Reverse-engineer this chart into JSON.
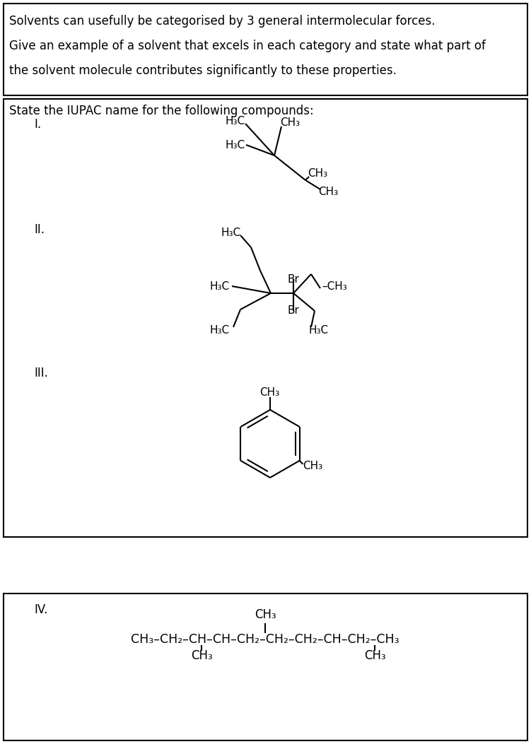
{
  "bg_color": "#ffffff",
  "q1_lines": [
    "Solvents can usefully be categorised by 3 general intermolecular forces.",
    "Give an example of a solvent that excels in each category and state what part of",
    "the solvent molecule contributes significantly to these properties."
  ],
  "q2_header": "State the IUPAC name for the following compounds:"
}
